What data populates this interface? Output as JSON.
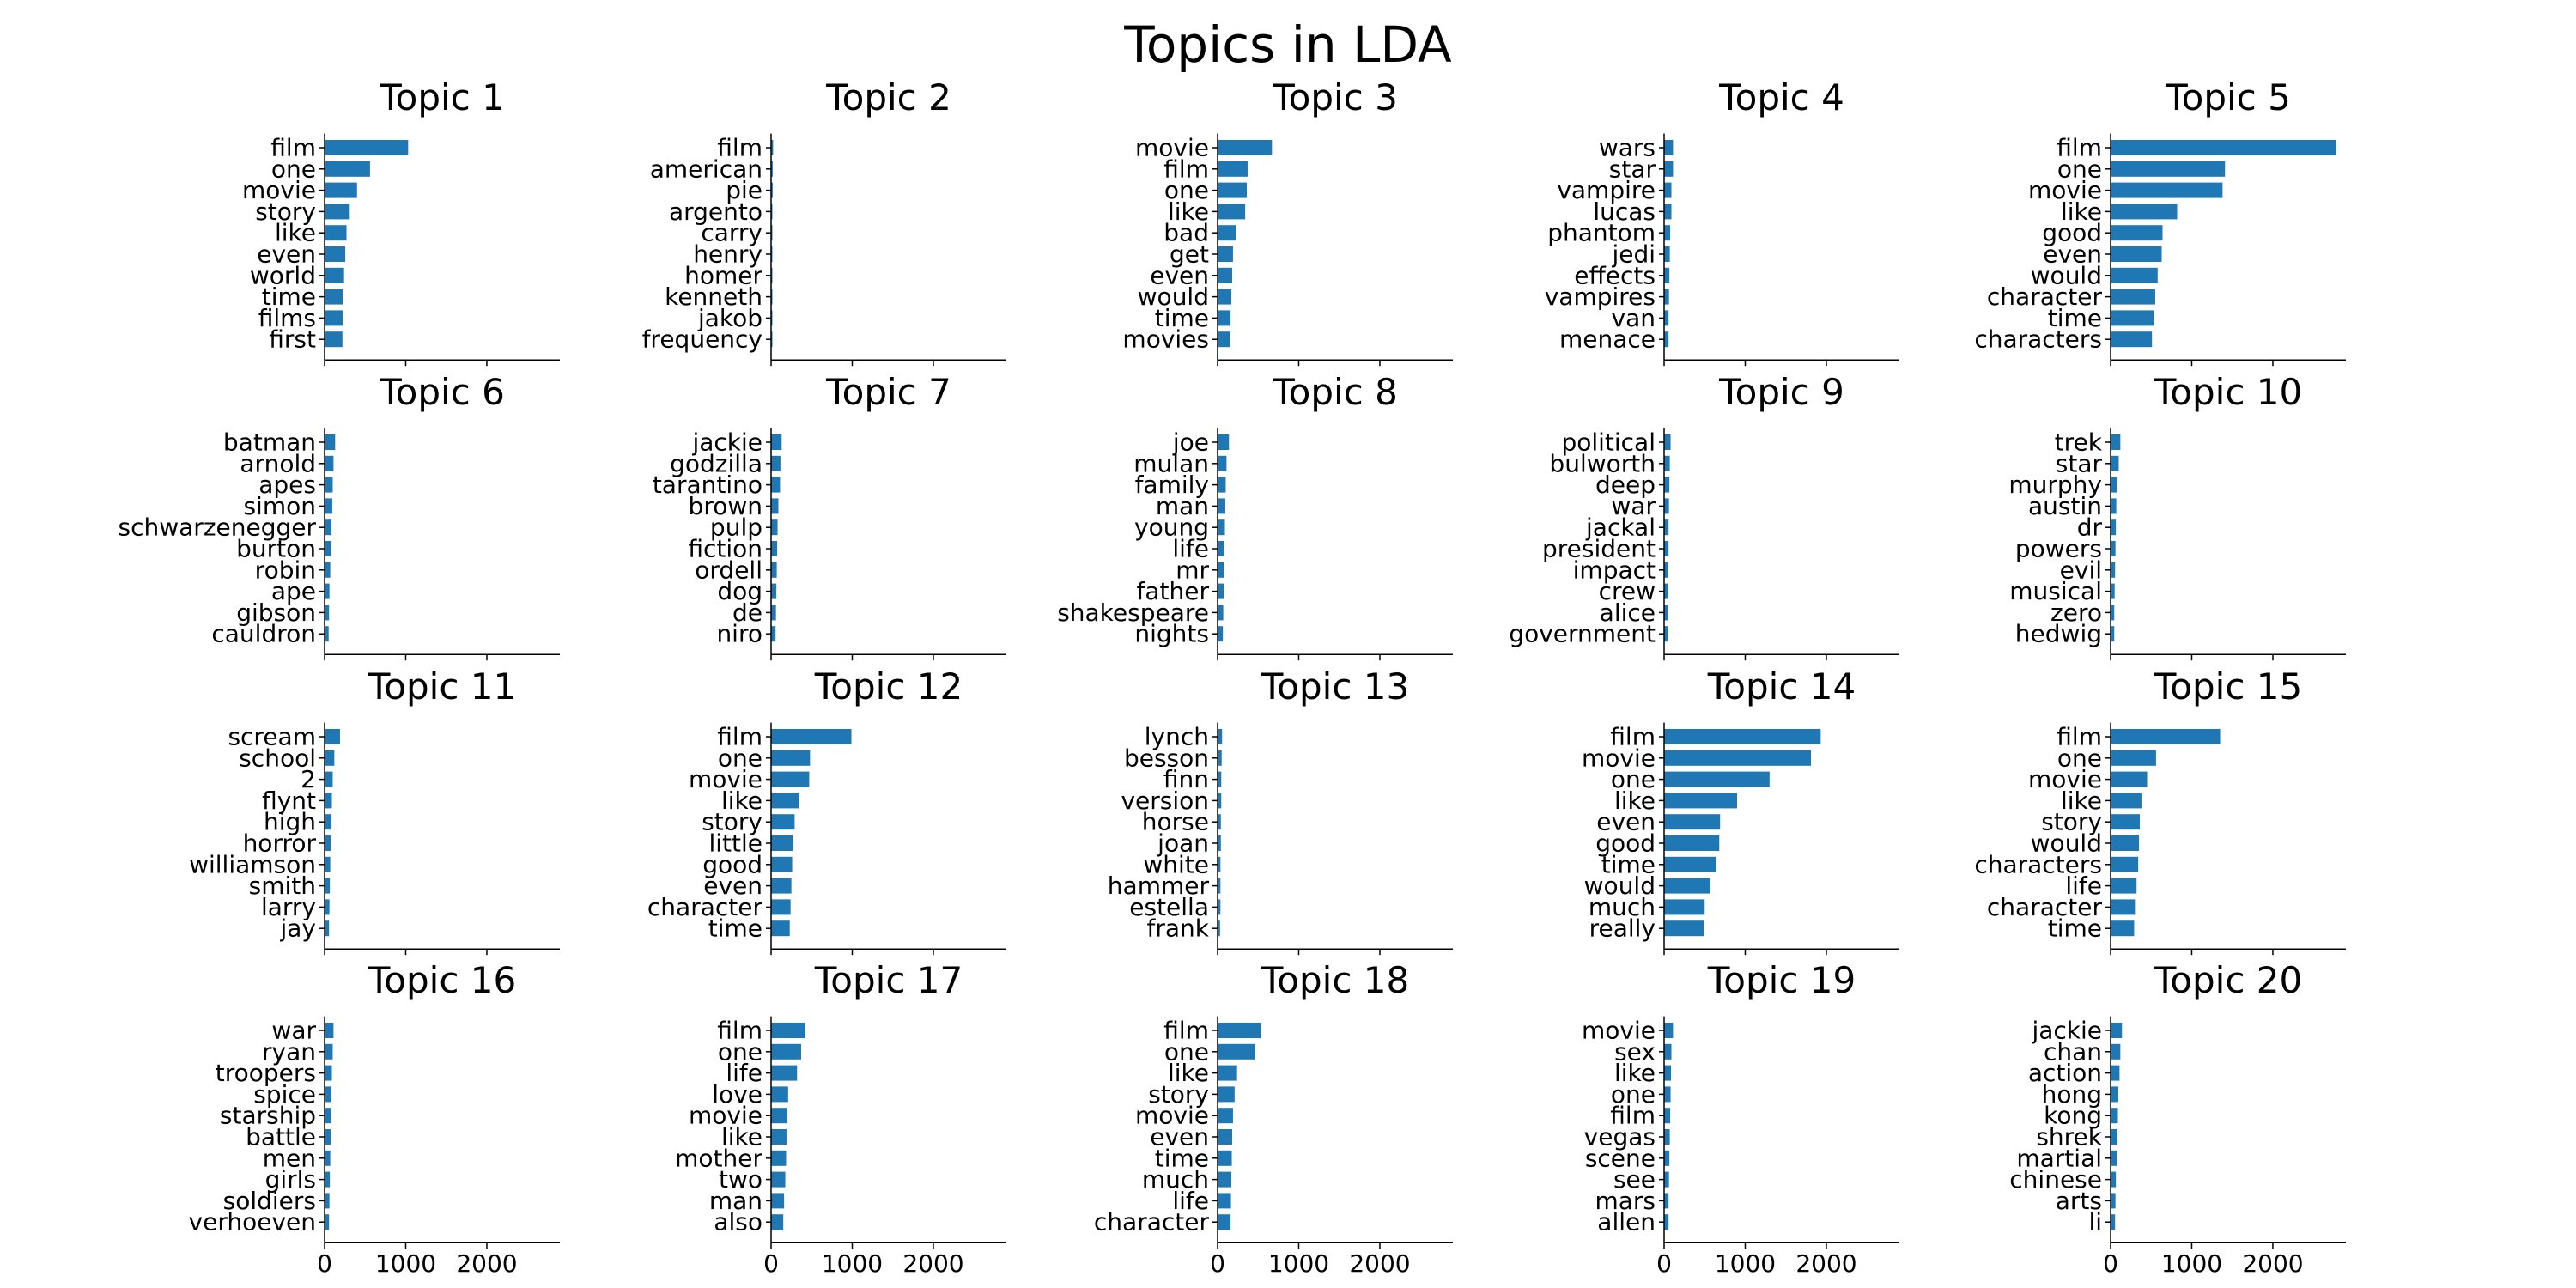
{
  "figure": {
    "title": "Topics in LDA"
  },
  "colors": {
    "bar": "#1f77b4",
    "axis": "#000000"
  },
  "chart_data": [
    {
      "type": "bar",
      "orientation": "horizontal",
      "title": "Topic 1",
      "categories": [
        "film",
        "one",
        "movie",
        "story",
        "like",
        "even",
        "world",
        "time",
        "films",
        "first"
      ],
      "values": [
        1030,
        560,
        400,
        310,
        270,
        255,
        240,
        225,
        225,
        220
      ],
      "xlim": [
        0,
        2900
      ],
      "xticks": [
        0,
        1000,
        2000
      ],
      "show_tick_labels": false
    },
    {
      "type": "bar",
      "orientation": "horizontal",
      "title": "Topic 2",
      "categories": [
        "film",
        "american",
        "pie",
        "argento",
        "carry",
        "henry",
        "homer",
        "kenneth",
        "jakob",
        "frequency"
      ],
      "values": [
        25,
        20,
        20,
        15,
        15,
        15,
        15,
        15,
        15,
        15
      ],
      "xlim": [
        0,
        2900
      ],
      "xticks": [
        0,
        1000,
        2000
      ],
      "show_tick_labels": false
    },
    {
      "type": "bar",
      "orientation": "horizontal",
      "title": "Topic 3",
      "categories": [
        "movie",
        "film",
        "one",
        "like",
        "bad",
        "get",
        "even",
        "would",
        "time",
        "movies"
      ],
      "values": [
        670,
        370,
        360,
        340,
        230,
        190,
        180,
        170,
        160,
        150
      ],
      "xlim": [
        0,
        2900
      ],
      "xticks": [
        0,
        1000,
        2000
      ],
      "show_tick_labels": false
    },
    {
      "type": "bar",
      "orientation": "horizontal",
      "title": "Topic 4",
      "categories": [
        "wars",
        "star",
        "vampire",
        "lucas",
        "phantom",
        "jedi",
        "effects",
        "vampires",
        "van",
        "menace"
      ],
      "values": [
        110,
        110,
        90,
        90,
        75,
        70,
        65,
        60,
        55,
        55
      ],
      "xlim": [
        0,
        2900
      ],
      "xticks": [
        0,
        1000,
        2000
      ],
      "show_tick_labels": false
    },
    {
      "type": "bar",
      "orientation": "horizontal",
      "title": "Topic 5",
      "categories": [
        "film",
        "one",
        "movie",
        "like",
        "good",
        "even",
        "would",
        "character",
        "time",
        "characters"
      ],
      "values": [
        2780,
        1410,
        1380,
        820,
        640,
        630,
        580,
        550,
        530,
        510
      ],
      "xlim": [
        0,
        2900
      ],
      "xticks": [
        0,
        1000,
        2000
      ],
      "show_tick_labels": false
    },
    {
      "type": "bar",
      "orientation": "horizontal",
      "title": "Topic 6",
      "categories": [
        "batman",
        "arnold",
        "apes",
        "simon",
        "schwarzenegger",
        "burton",
        "robin",
        "ape",
        "gibson",
        "cauldron"
      ],
      "values": [
        130,
        110,
        100,
        95,
        85,
        80,
        70,
        60,
        55,
        50
      ],
      "xlim": [
        0,
        2900
      ],
      "xticks": [
        0,
        1000,
        2000
      ],
      "show_tick_labels": false
    },
    {
      "type": "bar",
      "orientation": "horizontal",
      "title": "Topic 7",
      "categories": [
        "jackie",
        "godzilla",
        "tarantino",
        "brown",
        "pulp",
        "fiction",
        "ordell",
        "dog",
        "de",
        "niro"
      ],
      "values": [
        130,
        115,
        110,
        90,
        80,
        75,
        70,
        65,
        60,
        55
      ],
      "xlim": [
        0,
        2900
      ],
      "xticks": [
        0,
        1000,
        2000
      ],
      "show_tick_labels": false
    },
    {
      "type": "bar",
      "orientation": "horizontal",
      "title": "Topic 8",
      "categories": [
        "joe",
        "mulan",
        "family",
        "man",
        "young",
        "life",
        "mr",
        "father",
        "shakespeare",
        "nights"
      ],
      "values": [
        140,
        110,
        100,
        95,
        90,
        85,
        80,
        75,
        70,
        65
      ],
      "xlim": [
        0,
        2900
      ],
      "xticks": [
        0,
        1000,
        2000
      ],
      "show_tick_labels": false
    },
    {
      "type": "bar",
      "orientation": "horizontal",
      "title": "Topic 9",
      "categories": [
        "political",
        "bulworth",
        "deep",
        "war",
        "jackal",
        "president",
        "impact",
        "crew",
        "alice",
        "government"
      ],
      "values": [
        80,
        70,
        65,
        60,
        55,
        55,
        50,
        50,
        45,
        45
      ],
      "xlim": [
        0,
        2900
      ],
      "xticks": [
        0,
        1000,
        2000
      ],
      "show_tick_labels": false
    },
    {
      "type": "bar",
      "orientation": "horizontal",
      "title": "Topic 10",
      "categories": [
        "trek",
        "star",
        "murphy",
        "austin",
        "dr",
        "powers",
        "evil",
        "musical",
        "zero",
        "hedwig"
      ],
      "values": [
        120,
        100,
        80,
        70,
        65,
        60,
        55,
        50,
        45,
        45
      ],
      "xlim": [
        0,
        2900
      ],
      "xticks": [
        0,
        1000,
        2000
      ],
      "show_tick_labels": false
    },
    {
      "type": "bar",
      "orientation": "horizontal",
      "title": "Topic 11",
      "categories": [
        "scream",
        "school",
        "2",
        "flynt",
        "high",
        "horror",
        "williamson",
        "smith",
        "larry",
        "jay"
      ],
      "values": [
        190,
        120,
        100,
        90,
        85,
        75,
        70,
        65,
        60,
        55
      ],
      "xlim": [
        0,
        2900
      ],
      "xticks": [
        0,
        1000,
        2000
      ],
      "show_tick_labels": false
    },
    {
      "type": "bar",
      "orientation": "horizontal",
      "title": "Topic 12",
      "categories": [
        "film",
        "one",
        "movie",
        "like",
        "story",
        "little",
        "good",
        "even",
        "character",
        "time"
      ],
      "values": [
        990,
        480,
        470,
        340,
        290,
        270,
        260,
        250,
        240,
        230
      ],
      "xlim": [
        0,
        2900
      ],
      "xticks": [
        0,
        1000,
        2000
      ],
      "show_tick_labels": false
    },
    {
      "type": "bar",
      "orientation": "horizontal",
      "title": "Topic 13",
      "categories": [
        "lynch",
        "besson",
        "finn",
        "version",
        "horse",
        "joan",
        "white",
        "hammer",
        "estella",
        "frank"
      ],
      "values": [
        55,
        50,
        45,
        45,
        40,
        40,
        35,
        35,
        35,
        30
      ],
      "xlim": [
        0,
        2900
      ],
      "xticks": [
        0,
        1000,
        2000
      ],
      "show_tick_labels": false
    },
    {
      "type": "bar",
      "orientation": "horizontal",
      "title": "Topic 14",
      "categories": [
        "film",
        "movie",
        "one",
        "like",
        "even",
        "good",
        "time",
        "would",
        "much",
        "really"
      ],
      "values": [
        1930,
        1810,
        1300,
        900,
        690,
        680,
        640,
        570,
        500,
        490
      ],
      "xlim": [
        0,
        2900
      ],
      "xticks": [
        0,
        1000,
        2000
      ],
      "show_tick_labels": false
    },
    {
      "type": "bar",
      "orientation": "horizontal",
      "title": "Topic 15",
      "categories": [
        "film",
        "one",
        "movie",
        "like",
        "story",
        "would",
        "characters",
        "life",
        "character",
        "time"
      ],
      "values": [
        1350,
        560,
        450,
        380,
        360,
        350,
        340,
        320,
        300,
        290
      ],
      "xlim": [
        0,
        2900
      ],
      "xticks": [
        0,
        1000,
        2000
      ],
      "show_tick_labels": false
    },
    {
      "type": "bar",
      "orientation": "horizontal",
      "title": "Topic 16",
      "categories": [
        "war",
        "ryan",
        "troopers",
        "spice",
        "starship",
        "battle",
        "men",
        "girls",
        "soldiers",
        "verhoeven"
      ],
      "values": [
        110,
        100,
        90,
        85,
        80,
        75,
        70,
        65,
        60,
        55
      ],
      "xlim": [
        0,
        2900
      ],
      "xticks": [
        0,
        1000,
        2000
      ],
      "show_tick_labels": true
    },
    {
      "type": "bar",
      "orientation": "horizontal",
      "title": "Topic 17",
      "categories": [
        "film",
        "one",
        "life",
        "love",
        "movie",
        "like",
        "mother",
        "two",
        "man",
        "also"
      ],
      "values": [
        420,
        370,
        320,
        210,
        200,
        190,
        185,
        175,
        160,
        150
      ],
      "xlim": [
        0,
        2900
      ],
      "xticks": [
        0,
        1000,
        2000
      ],
      "show_tick_labels": true
    },
    {
      "type": "bar",
      "orientation": "horizontal",
      "title": "Topic 18",
      "categories": [
        "film",
        "one",
        "like",
        "story",
        "movie",
        "even",
        "time",
        "much",
        "life",
        "character"
      ],
      "values": [
        530,
        460,
        240,
        210,
        190,
        180,
        175,
        170,
        165,
        160
      ],
      "xlim": [
        0,
        2900
      ],
      "xticks": [
        0,
        1000,
        2000
      ],
      "show_tick_labels": true
    },
    {
      "type": "bar",
      "orientation": "horizontal",
      "title": "Topic 19",
      "categories": [
        "movie",
        "sex",
        "like",
        "one",
        "film",
        "vegas",
        "scene",
        "see",
        "mars",
        "allen"
      ],
      "values": [
        110,
        90,
        85,
        80,
        75,
        70,
        65,
        60,
        55,
        55
      ],
      "xlim": [
        0,
        2900
      ],
      "xticks": [
        0,
        1000,
        2000
      ],
      "show_tick_labels": true
    },
    {
      "type": "bar",
      "orientation": "horizontal",
      "title": "Topic 20",
      "categories": [
        "jackie",
        "chan",
        "action",
        "hong",
        "kong",
        "shrek",
        "martial",
        "chinese",
        "arts",
        "li"
      ],
      "values": [
        140,
        120,
        110,
        95,
        90,
        85,
        75,
        65,
        60,
        55
      ],
      "xlim": [
        0,
        2900
      ],
      "xticks": [
        0,
        1000,
        2000
      ],
      "show_tick_labels": true
    }
  ]
}
